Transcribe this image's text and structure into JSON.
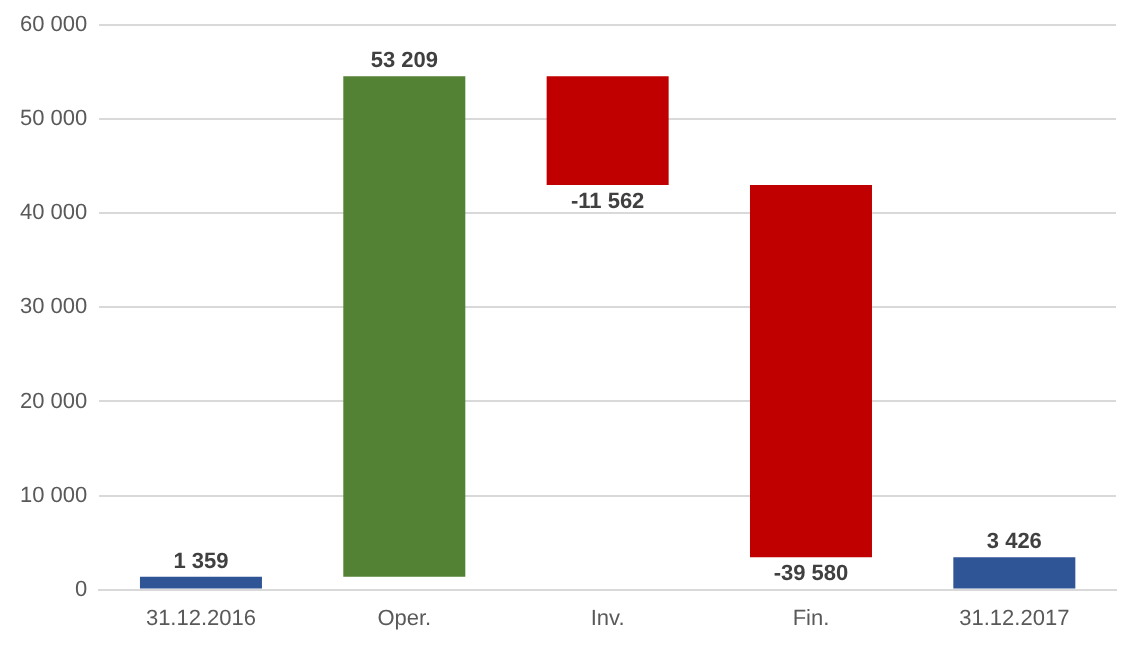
{
  "chart_data": {
    "type": "bar",
    "categories": [
      "31.12.2016",
      "Oper.",
      "Inv.",
      "Fin.",
      "31.12.2017"
    ],
    "values": [
      1359,
      53209,
      -11562,
      -39580,
      3426
    ],
    "base": [
      0,
      1359,
      54568,
      43006,
      0
    ],
    "colors": [
      "#2f5597",
      "#548235",
      "#c00000",
      "#c00000",
      "#2f5597"
    ],
    "value_labels": [
      "1 359",
      "53 209",
      "-11 562",
      "-39 580",
      "3 426"
    ],
    "ylim": [
      0,
      60000
    ],
    "yticks": [
      {
        "value": 0,
        "label": "0"
      },
      {
        "value": 10000,
        "label": "10 000"
      },
      {
        "value": 20000,
        "label": "20 000"
      },
      {
        "value": 30000,
        "label": "30 000"
      },
      {
        "value": 40000,
        "label": "40 000"
      },
      {
        "value": 50000,
        "label": "50 000"
      },
      {
        "value": 60000,
        "label": "60 000"
      }
    ],
    "grid": "y",
    "legend": false
  }
}
